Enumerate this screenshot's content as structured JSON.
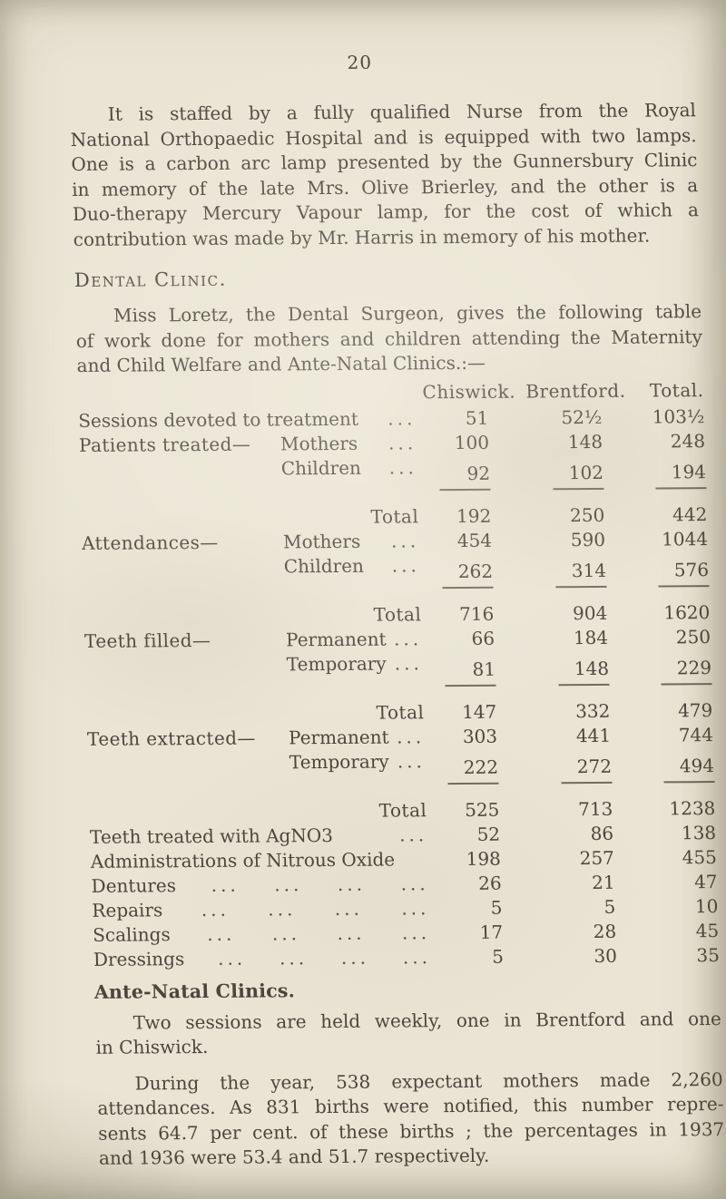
{
  "page": {
    "number": "20",
    "background": "#e9e4d4",
    "ink": "#4a463c"
  },
  "intro": {
    "lines": [
      "It is staffed by a fully qualified Nurse from the Royal",
      "National Orthopaedic Hospital and is equipped with two lamps.",
      "One is a carbon arc lamp presented by the Gunnersbury Clinic",
      "in memory of the late Mrs. Olive Brierley, and the other is a",
      "Duo-therapy Mercury Vapour lamp, for the cost of which a",
      "contribution was made by Mr. Harris in memory of his mother."
    ]
  },
  "dental": {
    "heading": "Dental Clinic.",
    "intro": {
      "lines": [
        "Miss Loretz, the Dental Surgeon, gives the following table",
        "of work done for mothers and children attending the Maternity",
        "and Child Welfare and Ante-Natal Clinics.:—"
      ]
    },
    "table": {
      "columns": [
        "Chiswick.",
        "Brentford.",
        "Total."
      ],
      "rows": [
        {
          "type": "data",
          "full": "Sessions devoted to treatment",
          "leader": "...",
          "values": [
            "51",
            "52½",
            "103½"
          ]
        },
        {
          "type": "data",
          "cat": "Patients treated—",
          "item": "Mothers",
          "leader": "...",
          "values": [
            "100",
            "148",
            "248"
          ]
        },
        {
          "type": "data",
          "cat": "",
          "item": "Children",
          "leader": "...",
          "values": [
            "92",
            "102",
            "194"
          ]
        },
        {
          "type": "rule"
        },
        {
          "type": "total",
          "label": "Total",
          "values": [
            "192",
            "250",
            "442"
          ]
        },
        {
          "type": "data",
          "cat": "Attendances—",
          "item": "Mothers",
          "leader": "...",
          "values": [
            "454",
            "590",
            "1044"
          ]
        },
        {
          "type": "data",
          "cat": "",
          "item": "Children",
          "leader": "...",
          "values": [
            "262",
            "314",
            "576"
          ]
        },
        {
          "type": "rule"
        },
        {
          "type": "total",
          "label": "Total",
          "values": [
            "716",
            "904",
            "1620"
          ]
        },
        {
          "type": "data",
          "cat": "Teeth filled—",
          "item": "Permanent",
          "leader": "...",
          "values": [
            "66",
            "184",
            "250"
          ]
        },
        {
          "type": "data",
          "cat": "",
          "item": "Temporary",
          "leader": "...",
          "values": [
            "81",
            "148",
            "229"
          ]
        },
        {
          "type": "rule"
        },
        {
          "type": "total",
          "label": "Total",
          "values": [
            "147",
            "332",
            "479"
          ]
        },
        {
          "type": "data",
          "cat": "Teeth extracted—",
          "item": "Permanent",
          "leader": "...",
          "values": [
            "303",
            "441",
            "744"
          ]
        },
        {
          "type": "data",
          "cat": "",
          "item": "Temporary",
          "leader": "...",
          "values": [
            "222",
            "272",
            "494"
          ]
        },
        {
          "type": "rule"
        },
        {
          "type": "total",
          "label": "Total",
          "values": [
            "525",
            "713",
            "1238"
          ]
        },
        {
          "type": "data",
          "full": "Teeth treated with AgNO3",
          "leader": "...",
          "values": [
            "52",
            "86",
            "138"
          ]
        },
        {
          "type": "data",
          "full": "Administrations of Nitrous Oxide",
          "leader": "",
          "values": [
            "198",
            "257",
            "455"
          ]
        },
        {
          "type": "data",
          "full": "Dentures",
          "spread": true,
          "leaders": [
            "...",
            "...",
            "...",
            "..."
          ],
          "values": [
            "26",
            "21",
            "47"
          ]
        },
        {
          "type": "data",
          "full": "Repairs",
          "spread": true,
          "leaders": [
            "...",
            "...",
            "...",
            "..."
          ],
          "values": [
            "5",
            "5",
            "10"
          ]
        },
        {
          "type": "data",
          "full": "Scalings",
          "spread": true,
          "leaders": [
            "...",
            "...",
            "...",
            "..."
          ],
          "values": [
            "17",
            "28",
            "45"
          ]
        },
        {
          "type": "data",
          "full": "Dressings",
          "spread": true,
          "leaders": [
            "...",
            "...",
            "...",
            "..."
          ],
          "values": [
            "5",
            "30",
            "35"
          ]
        }
      ]
    }
  },
  "ante_natal": {
    "heading": "Ante-Natal Clinics.",
    "para1": {
      "lines": [
        "Two sessions are held weekly, one in Brentford and one",
        "in Chiswick."
      ]
    },
    "para2": {
      "lines": [
        "During the year, 538 expectant mothers made 2,260",
        "attendances. As 831 births were notified, this number repre-",
        "sents 64.7 per cent. of these births ; the percentages in 1937",
        "and 1936 were 53.4 and 51.7 respectively."
      ]
    }
  }
}
